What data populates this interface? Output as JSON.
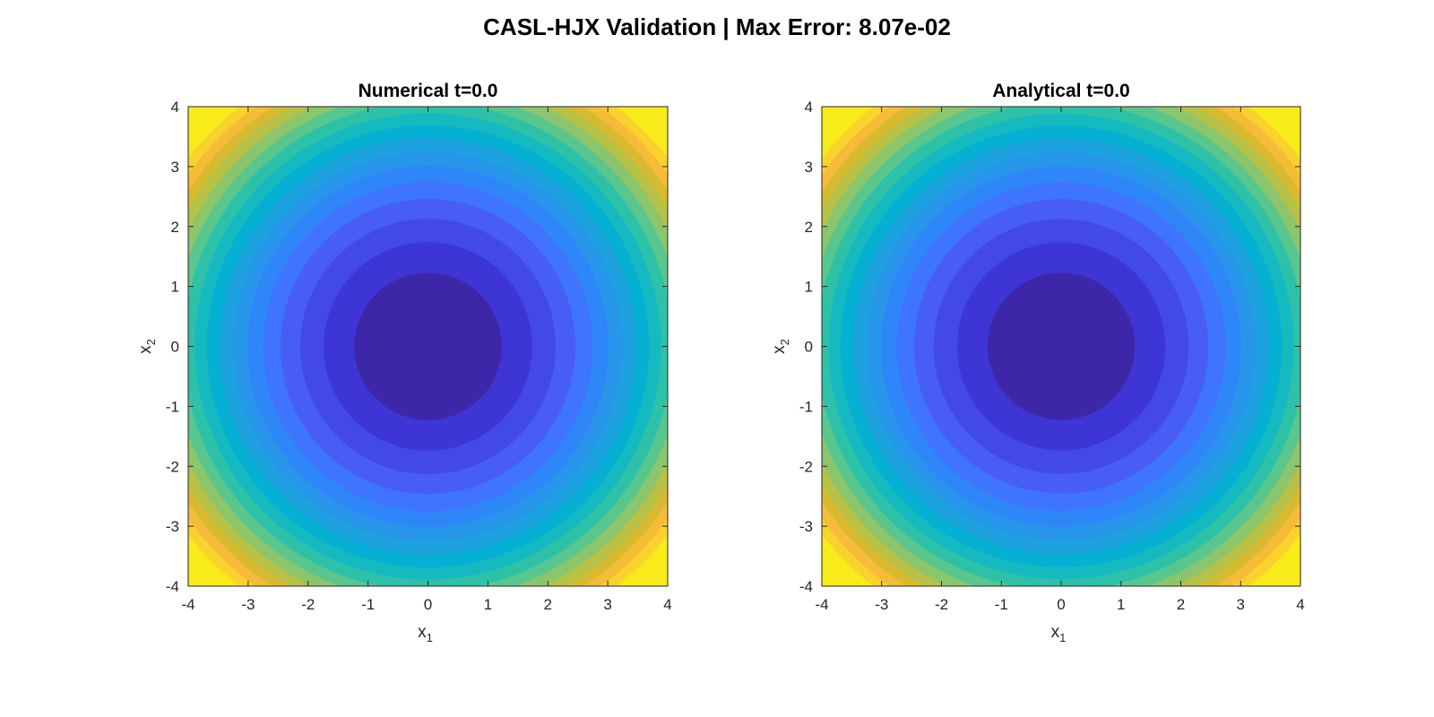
{
  "figure": {
    "title": "CASL-HJX Validation | Max Error: 8.07e-02"
  },
  "colormap": [
    "#3E26A8",
    "#3E35D5",
    "#4249E8",
    "#475DF4",
    "#3E74FE",
    "#2F86F8",
    "#2796EA",
    "#1CA3DF",
    "#06B0D2",
    "#15BAC0",
    "#2DC2A8",
    "#59C68E",
    "#8BC56C",
    "#B6C146",
    "#D8BA30",
    "#F6BC38",
    "#FAD22D",
    "#F8EB1A"
  ],
  "chart_data": [
    {
      "type": "contourf",
      "title": "Numerical t=0.0",
      "xlabel": "x",
      "xlabel_sub": "1",
      "ylabel": "x",
      "ylabel_sub": "2",
      "xlim": [
        -4,
        4
      ],
      "ylim": [
        -4,
        4
      ],
      "xticks": [
        "-4",
        "-3",
        "-2",
        "-1",
        "0",
        "1",
        "2",
        "3",
        "4"
      ],
      "yticks": [
        "-4",
        "-3",
        "-2",
        "-1",
        "0",
        "1",
        "2",
        "3",
        "4"
      ],
      "field": "sqrt(x1^2 + x2^2) - 1",
      "level_step": 0.44,
      "level_radii": [
        1.23,
        1.74,
        2.13,
        2.46,
        2.75,
        3.01,
        3.25,
        3.48,
        3.69,
        3.89,
        4.08,
        4.26,
        4.44,
        4.61,
        4.77,
        4.93,
        5.09,
        5.24
      ],
      "grid": false,
      "colorbar": false
    },
    {
      "type": "contourf",
      "title": "Analytical t=0.0",
      "xlabel": "x",
      "xlabel_sub": "1",
      "ylabel": "x",
      "ylabel_sub": "2",
      "xlim": [
        -4,
        4
      ],
      "ylim": [
        -4,
        4
      ],
      "xticks": [
        "-4",
        "-3",
        "-2",
        "-1",
        "0",
        "1",
        "2",
        "3",
        "4"
      ],
      "yticks": [
        "-4",
        "-3",
        "-2",
        "-1",
        "0",
        "1",
        "2",
        "3",
        "4"
      ],
      "field": "sqrt(x1^2 + x2^2) - 1",
      "level_step": 0.44,
      "level_radii": [
        1.23,
        1.74,
        2.13,
        2.46,
        2.75,
        3.01,
        3.25,
        3.48,
        3.69,
        3.89,
        4.08,
        4.26,
        4.44,
        4.61,
        4.77,
        4.93,
        5.09,
        5.24
      ],
      "grid": false,
      "colorbar": false
    }
  ]
}
